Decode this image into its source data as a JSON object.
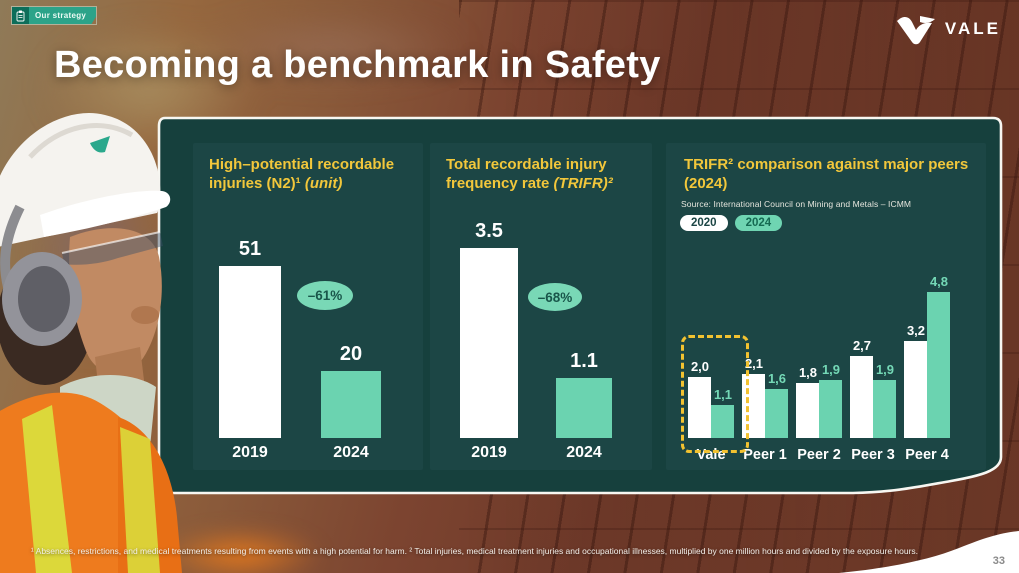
{
  "tag": {
    "label": "Our strategy"
  },
  "logo": {
    "text": "VALE"
  },
  "title": "Becoming a benchmark in Safety",
  "page_number": "33",
  "footnote": "¹ Absences, restrictions, and medical treatments resulting from events with a high potential for harm. ² Total injuries, medical treatment injuries and occupational illnesses, multiplied by one million hours and divided by the exposure hours.",
  "colors": {
    "accent_mint": "#6bd3b0",
    "accent_yellow": "#f2c73b",
    "panel_green": "#16403d",
    "card_green": "#1c4645",
    "bar_white": "#ffffff"
  },
  "chart_data": [
    {
      "type": "bar",
      "title": "High–potential recordable injuries (N2)¹",
      "title_italic": "(unit)",
      "categories": [
        "2019",
        "2024"
      ],
      "values": [
        51,
        20
      ],
      "labels": [
        "51",
        "20"
      ],
      "delta_badge": "–61%",
      "bar_colors": [
        "#ffffff",
        "#6bd3b0"
      ],
      "ylim": [
        0,
        51
      ],
      "grid": false,
      "legend_position": "none"
    },
    {
      "type": "bar",
      "title": "Total recordable injury frequency rate",
      "title_italic": "(TRIFR)²",
      "categories": [
        "2019",
        "2024"
      ],
      "values": [
        3.5,
        1.1
      ],
      "labels": [
        "3.5",
        "1.1"
      ],
      "delta_badge": "–68%",
      "bar_colors": [
        "#ffffff",
        "#6bd3b0"
      ],
      "ylim": [
        0,
        3.5
      ],
      "grid": false,
      "legend_position": "none"
    },
    {
      "type": "bar",
      "title": "TRIFR² comparison against major peers (2024)",
      "source": "Source: International Council on Mining and Metals – ICMM",
      "legend": [
        "2020",
        "2024"
      ],
      "categories": [
        "Vale",
        "Peer 1",
        "Peer 2",
        "Peer 3",
        "Peer 4"
      ],
      "series": [
        {
          "name": "2020",
          "color": "#ffffff",
          "label_color": "#ffffff",
          "values": [
            2.0,
            2.1,
            1.8,
            2.7,
            3.2
          ],
          "labels": [
            "2,0",
            "2,1",
            "1,8",
            "2,7",
            "3,2"
          ]
        },
        {
          "name": "2024",
          "color": "#6bd3b0",
          "label_color": "#74d8b6",
          "values": [
            1.1,
            1.6,
            1.9,
            1.9,
            4.8
          ],
          "labels": [
            "1,1",
            "1,6",
            "1,9",
            "1,9",
            "4,8"
          ]
        }
      ],
      "highlight_category": "Vale",
      "ylim": [
        0,
        5
      ],
      "grid": false,
      "legend_position": "top-left"
    }
  ]
}
